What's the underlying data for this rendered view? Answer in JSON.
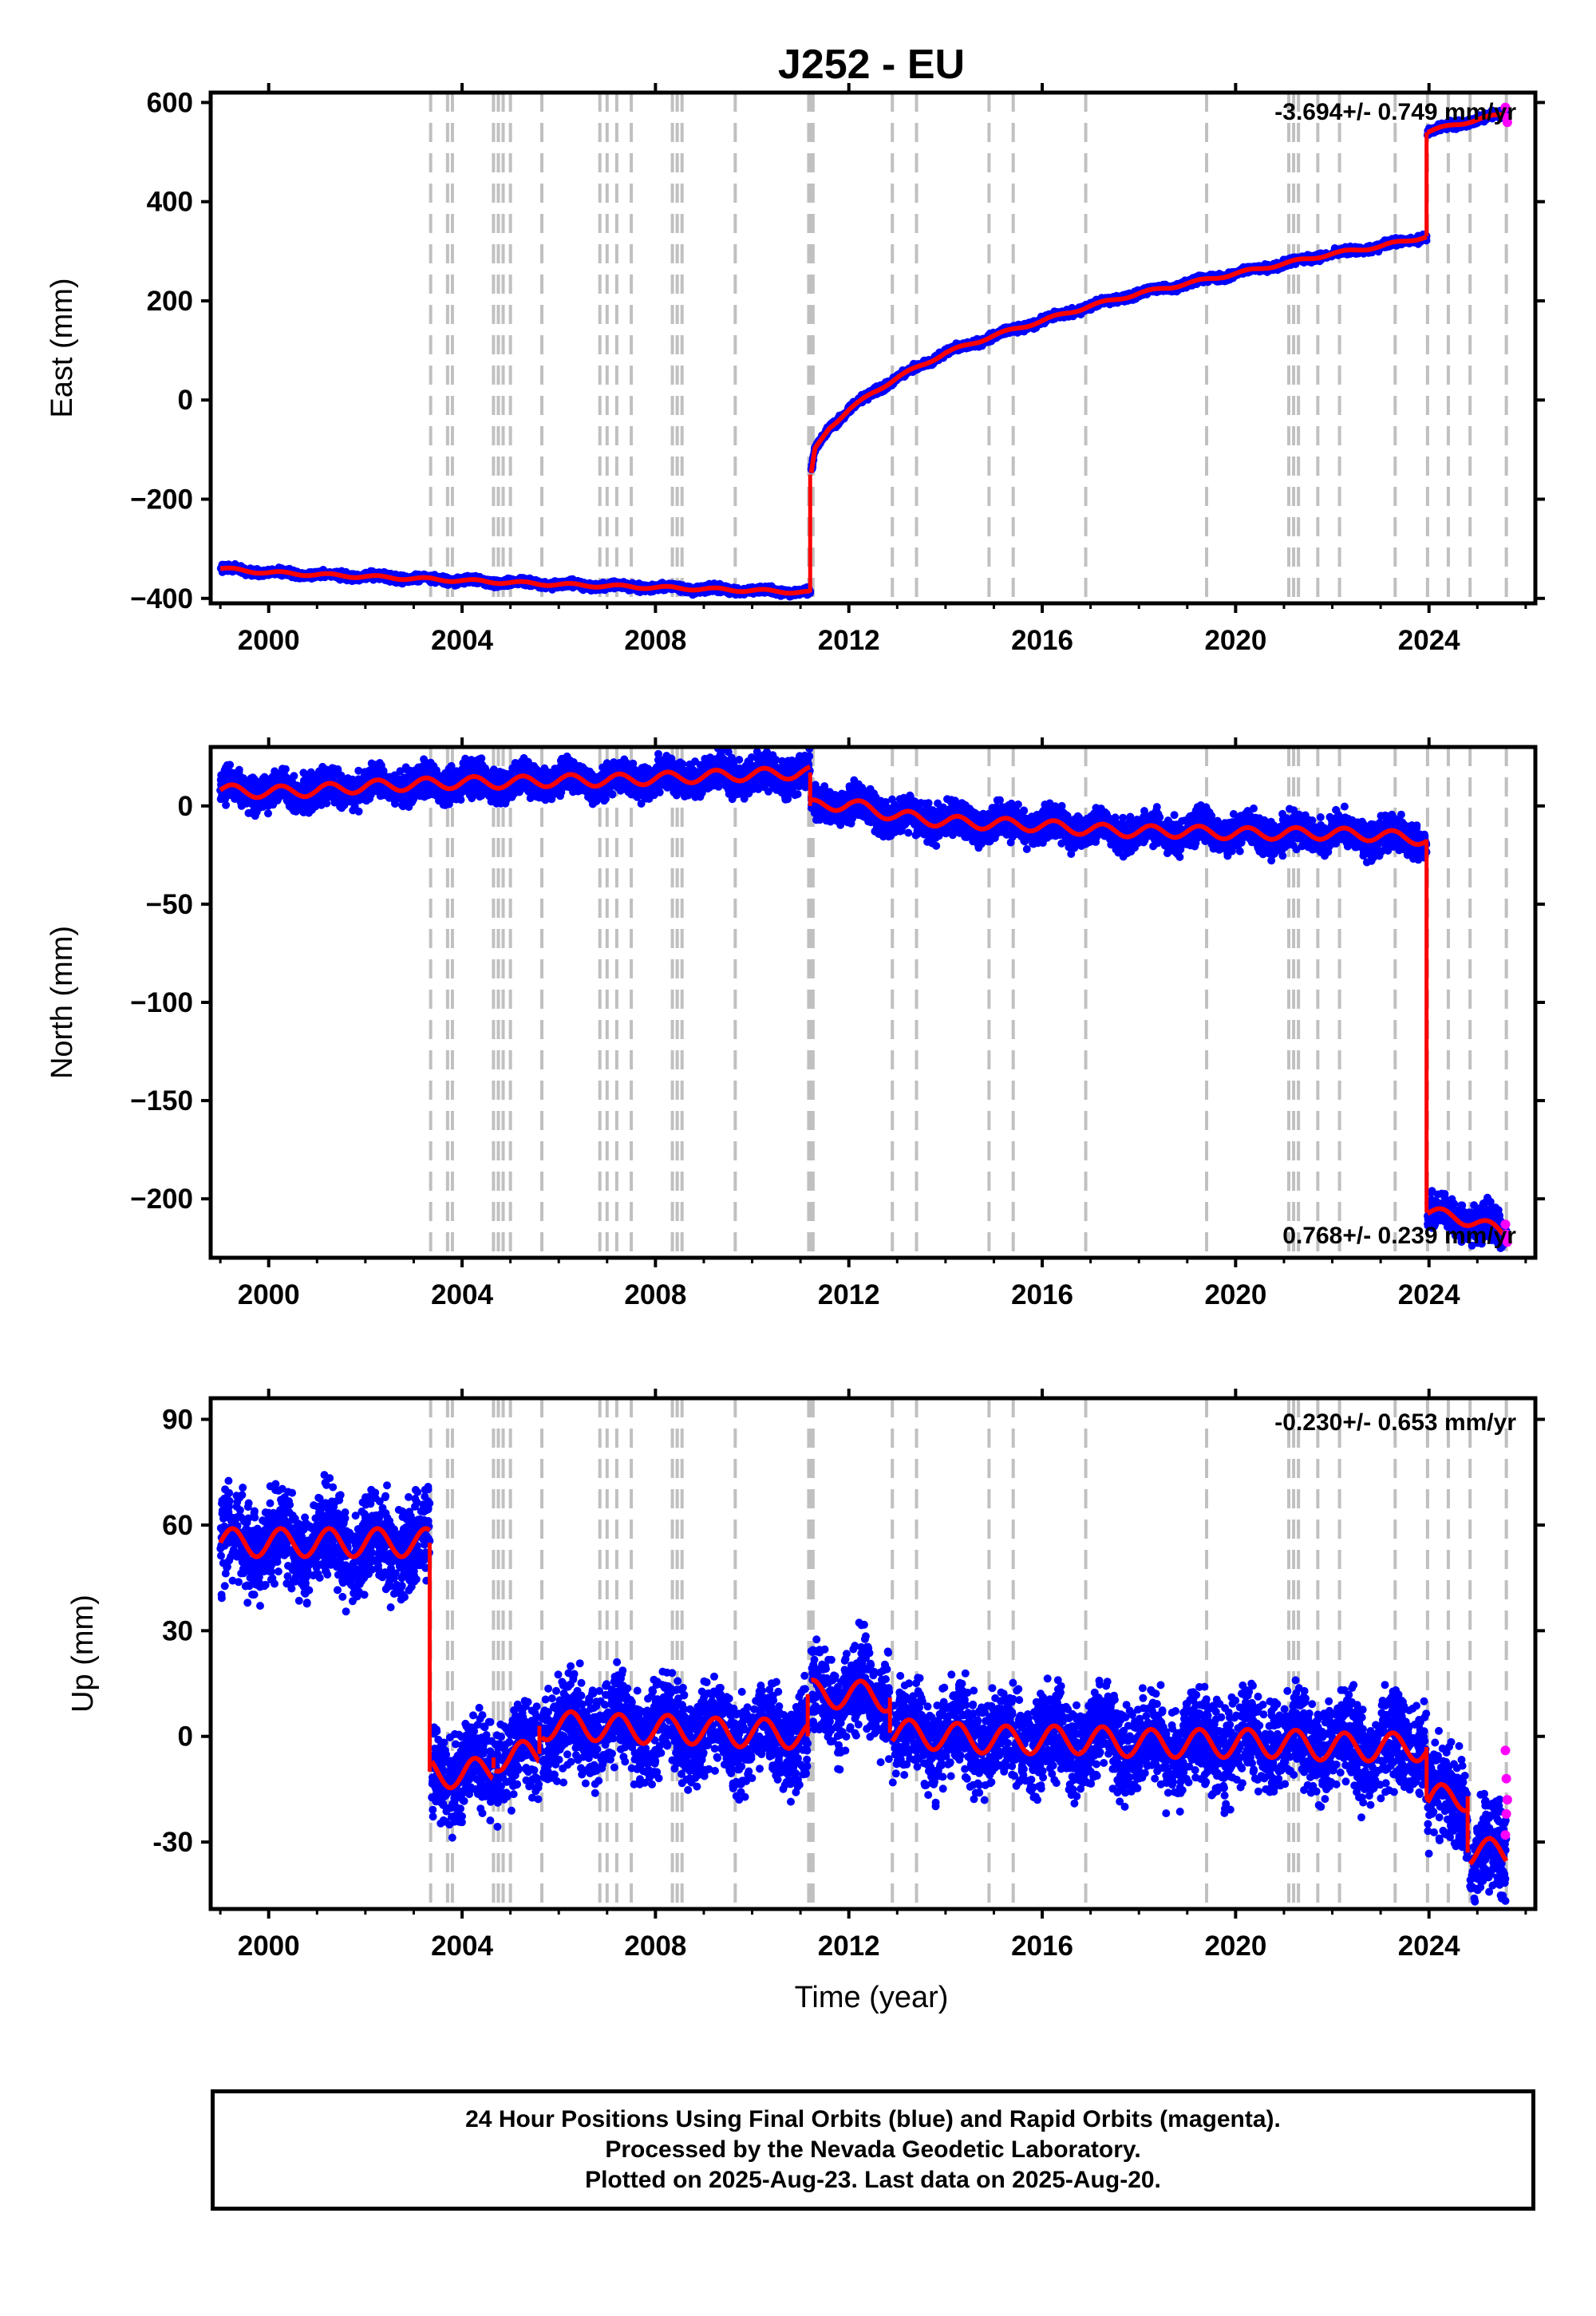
{
  "title": "J252 - EU",
  "xlabel": "Time (year)",
  "footer": {
    "line1": "24 Hour Positions Using Final Orbits (blue) and Rapid Orbits (magenta).",
    "line2": "Processed by the Nevada Geodetic Laboratory.",
    "line3": "Plotted on 2025-Aug-23. Last data on 2025-Aug-20."
  },
  "colors": {
    "final": "#0000ff",
    "rapid": "#ff00ff",
    "model": "#ff0000",
    "events": "#c0c0c0"
  },
  "chart_data": [
    {
      "type": "scatter",
      "name": "East",
      "ylabel": "East (mm)",
      "rate": "-3.694+/- 0.749 mm/yr",
      "xlim": [
        1998.8,
        2026.2
      ],
      "ylim": [
        -410,
        620
      ],
      "xticks": [
        2000,
        2004,
        2008,
        2012,
        2016,
        2020,
        2024
      ],
      "xtick_labels": [
        "2000",
        "2004",
        "2008",
        "2012",
        "2016",
        "2020",
        "2024"
      ],
      "yticks": [
        -400,
        -200,
        0,
        200,
        400,
        600
      ],
      "ytick_labels": [
        "−400",
        "−200",
        "0",
        "200",
        "400",
        "600"
      ],
      "series": [
        {
          "x": [
            1999.0,
            1999.5,
            2000.0,
            2001.0,
            2002.0,
            2003.0,
            2004.0,
            2005.0,
            2006.0,
            2007.0,
            2008.0,
            2009.0,
            2010.0,
            2011.2
          ],
          "y": [
            -340,
            -344,
            -348,
            -352,
            -356,
            -360,
            -364,
            -368,
            -372,
            -375,
            -378,
            -381,
            -384,
            -388
          ]
        },
        {
          "x": [
            2011.22,
            2011.3,
            2011.6,
            2012.0,
            2012.5,
            2013.0,
            2014.0,
            2015.0,
            2016.0,
            2017.0,
            2018.0,
            2019.0,
            2020.0,
            2021.0,
            2022.0,
            2023.0,
            2023.95
          ],
          "y": [
            -150,
            -100,
            -55,
            -20,
            15,
            45,
            95,
            130,
            160,
            190,
            215,
            235,
            255,
            275,
            295,
            310,
            330
          ]
        },
        {
          "x": [
            2023.97,
            2024.5,
            2025.0,
            2025.6
          ],
          "y": [
            540,
            555,
            565,
            578
          ]
        }
      ],
      "rapid": {
        "x": [
          2025.58,
          2025.6,
          2025.62
        ],
        "y": [
          590,
          570,
          560
        ]
      },
      "events": [
        2003.35,
        2003.7,
        2003.8,
        2004.65,
        2004.75,
        2004.85,
        2005.0,
        2005.65,
        2006.85,
        2007.0,
        2007.2,
        2007.5,
        2008.35,
        2008.45,
        2008.55,
        2009.65,
        2011.17,
        2011.2,
        2011.23,
        2011.26,
        2012.9,
        2013.4,
        2014.9,
        2015.4,
        2016.9,
        2019.4,
        2021.1,
        2021.2,
        2021.3,
        2021.7,
        2022.15,
        2023.3,
        2023.97,
        2024.4,
        2024.85,
        2025.6
      ]
    },
    {
      "type": "scatter",
      "name": "North",
      "ylabel": "North (mm)",
      "rate": "0.768+/- 0.239 mm/yr",
      "xlim": [
        1998.8,
        2026.2
      ],
      "ylim": [
        -230,
        30
      ],
      "xticks": [
        2000,
        2004,
        2008,
        2012,
        2016,
        2020,
        2024
      ],
      "xtick_labels": [
        "2000",
        "2004",
        "2008",
        "2012",
        "2016",
        "2020",
        "2024"
      ],
      "yticks": [
        -200,
        -150,
        -100,
        -50,
        0
      ],
      "ytick_labels": [
        "−200",
        "−150",
        "−100",
        "−50",
        "0"
      ],
      "series": [
        {
          "x": [
            1999.0,
            2000.0,
            2001.0,
            2002.0,
            2003.0,
            2004.0,
            2005.0,
            2006.0,
            2007.0,
            2008.0,
            2009.0,
            2010.0,
            2011.2
          ],
          "y": [
            8,
            7,
            8,
            10,
            11,
            12,
            12,
            13,
            13,
            14,
            15,
            16,
            17
          ]
        },
        {
          "x": [
            2011.22,
            2012.0,
            2013.0,
            2014.0,
            2015.0,
            2016.0,
            2017.0,
            2018.0,
            2019.0,
            2020.0,
            2021.0,
            2022.0,
            2023.0,
            2023.95
          ],
          "y": [
            0,
            1,
            -5,
            -8,
            -9,
            -10,
            -12,
            -13,
            -13,
            -14,
            -14,
            -14,
            -15,
            -17
          ]
        },
        {
          "x": [
            2023.97,
            2024.5,
            2025.0,
            2025.6
          ],
          "y": [
            -207,
            -209,
            -212,
            -218
          ]
        }
      ],
      "rapid": {
        "x": [
          2025.58,
          2025.6,
          2025.62
        ],
        "y": [
          -213,
          -218,
          -222
        ]
      },
      "events": [
        2003.35,
        2003.7,
        2003.8,
        2004.65,
        2004.75,
        2004.85,
        2005.0,
        2005.65,
        2006.85,
        2007.0,
        2007.2,
        2007.5,
        2008.35,
        2008.45,
        2008.55,
        2009.65,
        2011.17,
        2011.2,
        2011.23,
        2011.26,
        2012.9,
        2013.4,
        2014.9,
        2015.4,
        2016.9,
        2019.4,
        2021.1,
        2021.2,
        2021.3,
        2021.7,
        2022.15,
        2023.3,
        2023.97,
        2024.4,
        2024.85,
        2025.6
      ]
    },
    {
      "type": "scatter",
      "name": "Up",
      "ylabel": "Up (mm)",
      "rate": "-0.230+/- 0.653 mm/yr",
      "xlim": [
        1998.8,
        2026.2
      ],
      "ylim": [
        -49,
        96
      ],
      "xticks": [
        2000,
        2004,
        2008,
        2012,
        2016,
        2020,
        2024
      ],
      "xtick_labels": [
        "2000",
        "2004",
        "2008",
        "2012",
        "2016",
        "2020",
        "2024"
      ],
      "yticks": [
        -30,
        0,
        30,
        60,
        90
      ],
      "ytick_labels": [
        "-30",
        "0",
        "30",
        "60",
        "90"
      ],
      "series": [
        {
          "x": [
            1999.0,
            2003.33
          ],
          "y": [
            55,
            55
          ]
        },
        {
          "x": [
            2003.37,
            2004.0,
            2004.65
          ],
          "y": [
            -10,
            -11,
            -9
          ]
        },
        {
          "x": [
            2004.68,
            2005.6
          ],
          "y": [
            -6,
            -5
          ]
        },
        {
          "x": [
            2005.65,
            2006.5,
            2007.5,
            2008.5,
            2009.5,
            2010.5,
            2011.15
          ],
          "y": [
            3,
            3,
            2,
            2,
            1,
            1,
            0
          ]
        },
        {
          "x": [
            2011.22,
            2012.0,
            2012.85
          ],
          "y": [
            12,
            12,
            11
          ]
        },
        {
          "x": [
            2012.9,
            2014.0,
            2015.0,
            2016.0,
            2017.0,
            2018.0,
            2019.0,
            2020.0,
            2021.0,
            2022.0,
            2023.0,
            2023.95
          ],
          "y": [
            1,
            0,
            -1,
            -1,
            -1,
            -2,
            -2,
            -2,
            -2,
            -3,
            -3,
            -3
          ]
        },
        {
          "x": [
            2023.97,
            2024.8
          ],
          "y": [
            -18,
            -17
          ]
        },
        {
          "x": [
            2024.85,
            2025.6
          ],
          "y": [
            -33,
            -33
          ]
        }
      ],
      "rapid": {
        "x": [
          2025.58,
          2025.6,
          2025.62,
          2025.6,
          2025.58
        ],
        "y": [
          -4,
          -12,
          -18,
          -22,
          -28
        ]
      },
      "events": [
        2003.35,
        2003.7,
        2003.8,
        2004.65,
        2004.75,
        2004.85,
        2005.0,
        2005.65,
        2006.85,
        2007.0,
        2007.2,
        2007.5,
        2008.35,
        2008.45,
        2008.55,
        2009.65,
        2011.17,
        2011.2,
        2011.23,
        2011.26,
        2012.9,
        2013.4,
        2014.9,
        2015.4,
        2016.9,
        2019.4,
        2021.1,
        2021.2,
        2021.3,
        2021.7,
        2022.15,
        2023.3,
        2023.97,
        2024.4,
        2024.85,
        2025.6
      ]
    }
  ]
}
